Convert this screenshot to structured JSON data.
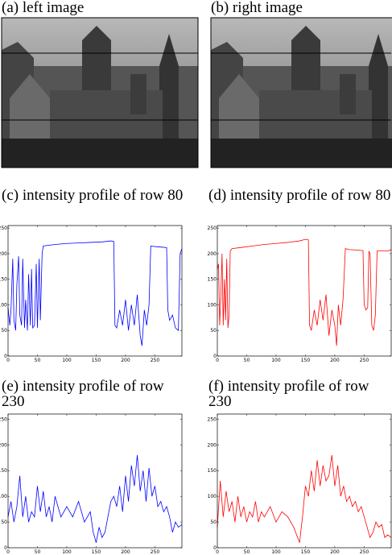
{
  "images": [
    {
      "caption": "(a) left image"
    },
    {
      "caption": "(b) right image"
    }
  ],
  "chart_data": [
    {
      "type": "line",
      "caption": "(c) intensity profile of row 80",
      "xlim": [
        0,
        296
      ],
      "ylim": [
        0,
        255
      ],
      "xticks": [
        0,
        50,
        100,
        150,
        200,
        250
      ],
      "yticks": [
        0,
        50,
        100,
        150,
        200,
        250
      ],
      "x": [
        0,
        3,
        5,
        8,
        10,
        13,
        15,
        18,
        20,
        23,
        25,
        28,
        30,
        33,
        35,
        38,
        40,
        42,
        45,
        48,
        50,
        53,
        55,
        58,
        60,
        80,
        100,
        120,
        140,
        160,
        175,
        180,
        182,
        185,
        190,
        195,
        200,
        205,
        210,
        215,
        220,
        225,
        228,
        232,
        236,
        240,
        243,
        250,
        260,
        270,
        272,
        275,
        280,
        285,
        290,
        293,
        296
      ],
      "series": [
        {
          "color": "#0000ff",
          "values": [
            95,
            60,
            90,
            190,
            70,
            50,
            140,
            195,
            80,
            60,
            190,
            55,
            110,
            50,
            160,
            60,
            170,
            55,
            60,
            180,
            55,
            190,
            70,
            200,
            215,
            218,
            220,
            221,
            222,
            223,
            225,
            224,
            60,
            55,
            90,
            60,
            110,
            50,
            100,
            60,
            120,
            40,
            20,
            90,
            60,
            100,
            215,
            214,
            213,
            212,
            90,
            70,
            80,
            55,
            50,
            200,
            210
          ]
        }
      ]
    },
    {
      "type": "line",
      "caption": "(d) intensity profile of row 80",
      "xlim": [
        0,
        296
      ],
      "ylim": [
        0,
        255
      ],
      "xticks": [
        0,
        50,
        100,
        150,
        200,
        250
      ],
      "yticks": [
        0,
        50,
        100,
        150,
        200,
        250
      ],
      "x": [
        0,
        2,
        4,
        6,
        8,
        10,
        12,
        14,
        16,
        18,
        20,
        22,
        25,
        40,
        60,
        80,
        100,
        120,
        140,
        150,
        155,
        157,
        160,
        165,
        170,
        175,
        180,
        185,
        190,
        195,
        200,
        203,
        206,
        210,
        214,
        218,
        225,
        240,
        248,
        250,
        253,
        256,
        258,
        260,
        263,
        266,
        269,
        272,
        280,
        290,
        296
      ],
      "series": [
        {
          "color": "#ff0000",
          "values": [
            170,
            180,
            60,
            120,
            200,
            60,
            150,
            70,
            190,
            55,
            80,
            205,
            210,
            212,
            215,
            218,
            220,
            222,
            225,
            228,
            227,
            60,
            50,
            90,
            60,
            110,
            70,
            120,
            40,
            90,
            60,
            20,
            100,
            60,
            110,
            210,
            208,
            207,
            206,
            100,
            90,
            95,
            205,
            200,
            60,
            50,
            80,
            205,
            206,
            205,
            208
          ]
        }
      ]
    },
    {
      "type": "line",
      "caption": "(e) intensity profile of row 230",
      "xlim": [
        0,
        296
      ],
      "ylim": [
        0,
        260
      ],
      "xticks": [
        0,
        50,
        100,
        150,
        200,
        250
      ],
      "yticks": [
        0,
        50,
        100,
        150,
        200,
        250
      ],
      "x": [
        0,
        5,
        10,
        15,
        20,
        25,
        30,
        35,
        40,
        45,
        50,
        55,
        60,
        65,
        70,
        75,
        80,
        90,
        100,
        110,
        120,
        130,
        140,
        145,
        150,
        155,
        160,
        165,
        170,
        175,
        180,
        185,
        190,
        195,
        200,
        205,
        210,
        215,
        220,
        225,
        230,
        235,
        240,
        245,
        250,
        255,
        260,
        265,
        270,
        275,
        280,
        285,
        290,
        296
      ],
      "series": [
        {
          "color": "#0000ff",
          "values": [
            60,
            90,
            50,
            80,
            140,
            60,
            100,
            50,
            70,
            60,
            120,
            70,
            110,
            60,
            80,
            50,
            100,
            60,
            80,
            60,
            90,
            50,
            70,
            30,
            10,
            40,
            20,
            30,
            60,
            90,
            100,
            80,
            120,
            70,
            140,
            90,
            160,
            120,
            180,
            110,
            150,
            90,
            155,
            100,
            120,
            80,
            90,
            70,
            80,
            60,
            30,
            50,
            40,
            45
          ]
        }
      ]
    },
    {
      "type": "line",
      "caption": "(f) intensity profile of row 230",
      "xlim": [
        0,
        296
      ],
      "ylim": [
        0,
        260
      ],
      "xticks": [
        0,
        50,
        100,
        150,
        200,
        250
      ],
      "yticks": [
        0,
        50,
        100,
        150,
        200,
        250
      ],
      "x": [
        0,
        5,
        10,
        15,
        20,
        25,
        30,
        35,
        40,
        45,
        50,
        55,
        60,
        65,
        70,
        75,
        80,
        90,
        100,
        110,
        120,
        130,
        140,
        145,
        150,
        155,
        160,
        165,
        170,
        175,
        180,
        185,
        190,
        195,
        200,
        205,
        210,
        215,
        220,
        225,
        230,
        235,
        240,
        245,
        250,
        255,
        260,
        265,
        270,
        275,
        280,
        285,
        290,
        296
      ],
      "series": [
        {
          "color": "#ff0000",
          "values": [
            40,
            130,
            60,
            110,
            70,
            90,
            50,
            100,
            60,
            80,
            50,
            70,
            60,
            90,
            50,
            70,
            60,
            80,
            50,
            70,
            60,
            40,
            10,
            60,
            120,
            100,
            150,
            110,
            170,
            120,
            160,
            130,
            140,
            180,
            120,
            160,
            100,
            120,
            90,
            100,
            80,
            90,
            70,
            80,
            60,
            40,
            20,
            30,
            50,
            40,
            45,
            20,
            25,
            20
          ]
        }
      ]
    }
  ]
}
